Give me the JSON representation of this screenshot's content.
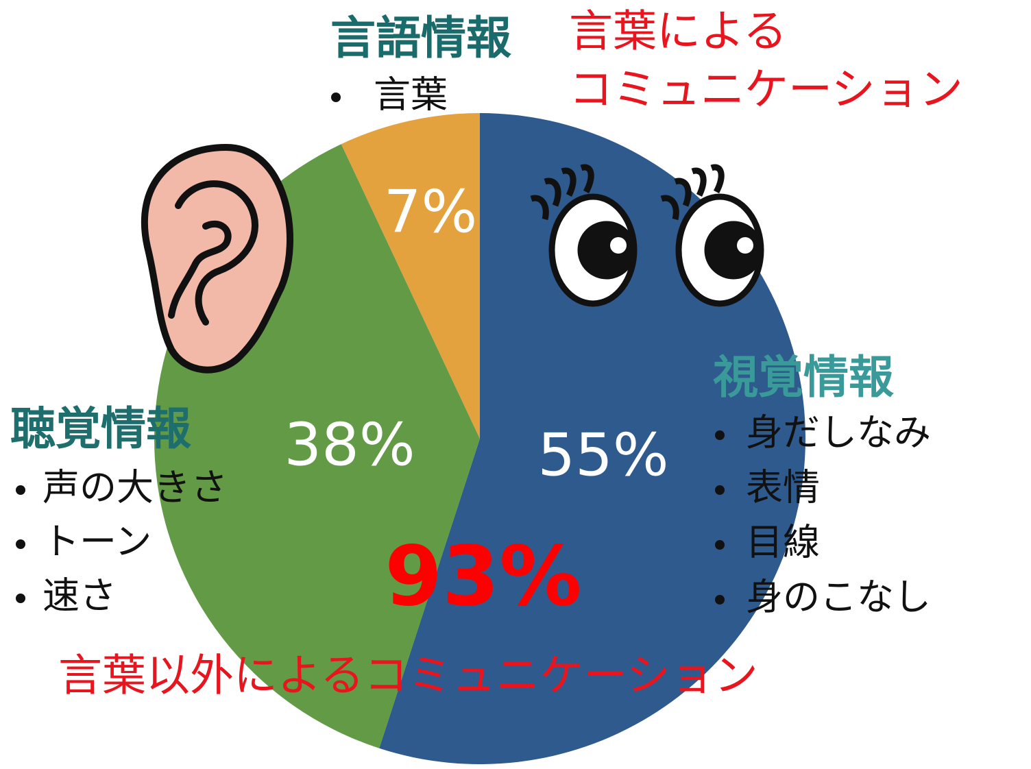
{
  "chart_data": {
    "type": "pie",
    "categories": [
      "視覚情報",
      "聴覚情報",
      "言語情報"
    ],
    "values": [
      55,
      38,
      7
    ],
    "value_labels": [
      "55%",
      "38%",
      "7%"
    ],
    "colors": [
      "#2e5a8e",
      "#629a46",
      "#e4a23e"
    ],
    "details": [
      [
        "身だしなみ",
        "表情",
        "目線",
        "身のこなし"
      ],
      [
        "声の大きさ",
        "トーン",
        "速さ"
      ],
      [
        "言葉"
      ]
    ],
    "annotations": [
      "言葉による",
      "コミュニケーション",
      "言葉以外によるコミュニケーション"
    ],
    "highlight": {
      "value": 93,
      "label": "93%"
    }
  }
}
